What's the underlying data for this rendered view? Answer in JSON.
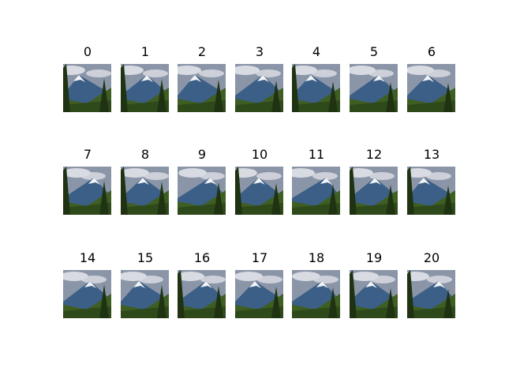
{
  "figure": {
    "panels": [
      {
        "label": "0",
        "scene": "mountain landscape with snowy peak, cloudy sky and forest"
      },
      {
        "label": "1",
        "scene": "mountain landscape with snowy peak, cloudy sky and forest"
      },
      {
        "label": "2",
        "scene": "mountain landscape with snowy peak, cloudy sky and forest"
      },
      {
        "label": "3",
        "scene": "mountain landscape with snowy peak, cloudy sky and forest"
      },
      {
        "label": "4",
        "scene": "mountain landscape with snowy peak, cloudy sky and forest"
      },
      {
        "label": "5",
        "scene": "mountain landscape with snowy peak, cloudy sky and forest"
      },
      {
        "label": "6",
        "scene": "mountain landscape with snowy peak, cloudy sky and forest"
      },
      {
        "label": "7",
        "scene": "mountain landscape with snowy peak, cloudy sky and forest"
      },
      {
        "label": "8",
        "scene": "mountain landscape with snowy peak, cloudy sky and forest"
      },
      {
        "label": "9",
        "scene": "mountain landscape with snowy peak, cloudy sky and forest"
      },
      {
        "label": "10",
        "scene": "mountain landscape with snowy peak, cloudy sky and forest"
      },
      {
        "label": "11",
        "scene": "mountain landscape with snowy peak, cloudy sky and forest"
      },
      {
        "label": "12",
        "scene": "mountain landscape with snowy peak, cloudy sky and forest"
      },
      {
        "label": "13",
        "scene": "mountain landscape with snowy peak, cloudy sky and forest"
      },
      {
        "label": "14",
        "scene": "mountain landscape with snowy peak, cloudy sky and forest"
      },
      {
        "label": "15",
        "scene": "mountain landscape with snowy peak, cloudy sky and forest"
      },
      {
        "label": "16",
        "scene": "mountain landscape with snowy peak, cloudy sky and forest"
      },
      {
        "label": "17",
        "scene": "mountain landscape with snowy peak, cloudy sky and forest"
      },
      {
        "label": "18",
        "scene": "mountain landscape with snowy peak, cloudy sky and forest"
      },
      {
        "label": "19",
        "scene": "mountain landscape with snowy peak, cloudy sky and forest"
      },
      {
        "label": "20",
        "scene": "mountain landscape with snowy peak, cloudy sky and forest"
      }
    ],
    "colors": {
      "background": "#ffffff",
      "sky": "#8a95a8",
      "cloud": "#d8dbe2",
      "mountain": "#3b5f86",
      "snow": "#f2f4f7",
      "forest": "#3f5e22",
      "tree": "#1f3312"
    }
  }
}
